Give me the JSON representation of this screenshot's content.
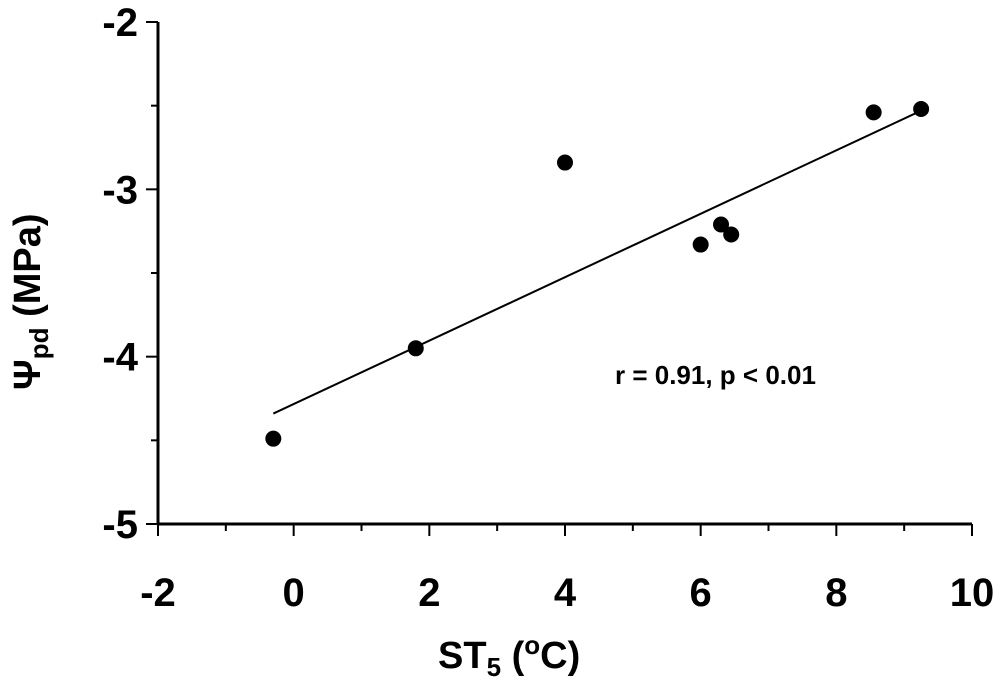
{
  "chart_data": {
    "type": "scatter",
    "title": "",
    "xlabel": {
      "main": "ST",
      "sub": "5",
      "pre": " (",
      "sup": "o",
      "post": "C)"
    },
    "ylabel": {
      "main": "Ψ",
      "sub": "pd",
      "post": "  (MPa)"
    },
    "xlim": [
      -2,
      10
    ],
    "ylim": [
      -5,
      -2
    ],
    "xticks": [
      -2,
      0,
      2,
      4,
      6,
      8,
      10
    ],
    "yticks": [
      -5,
      -4,
      -3,
      -2
    ],
    "xtick_labels": [
      "-2",
      "0",
      "2",
      "4",
      "6",
      "8",
      "10"
    ],
    "ytick_labels": [
      "-5",
      "-4",
      "-3",
      "-2"
    ],
    "grid": false,
    "series": [
      {
        "points": [
          [
            -0.3,
            -4.49
          ],
          [
            1.8,
            -3.95
          ],
          [
            4.0,
            -2.84
          ],
          [
            6.0,
            -3.33
          ],
          [
            6.3,
            -3.21
          ],
          [
            6.45,
            -3.27
          ],
          [
            8.55,
            -2.54
          ],
          [
            9.25,
            -2.52
          ]
        ],
        "marker_color": "#000000"
      }
    ],
    "trendline": {
      "x": [
        -0.3,
        9.25
      ],
      "y": [
        -4.34,
        -2.53
      ]
    },
    "annotation": "r = 0.91, p < 0.01"
  }
}
